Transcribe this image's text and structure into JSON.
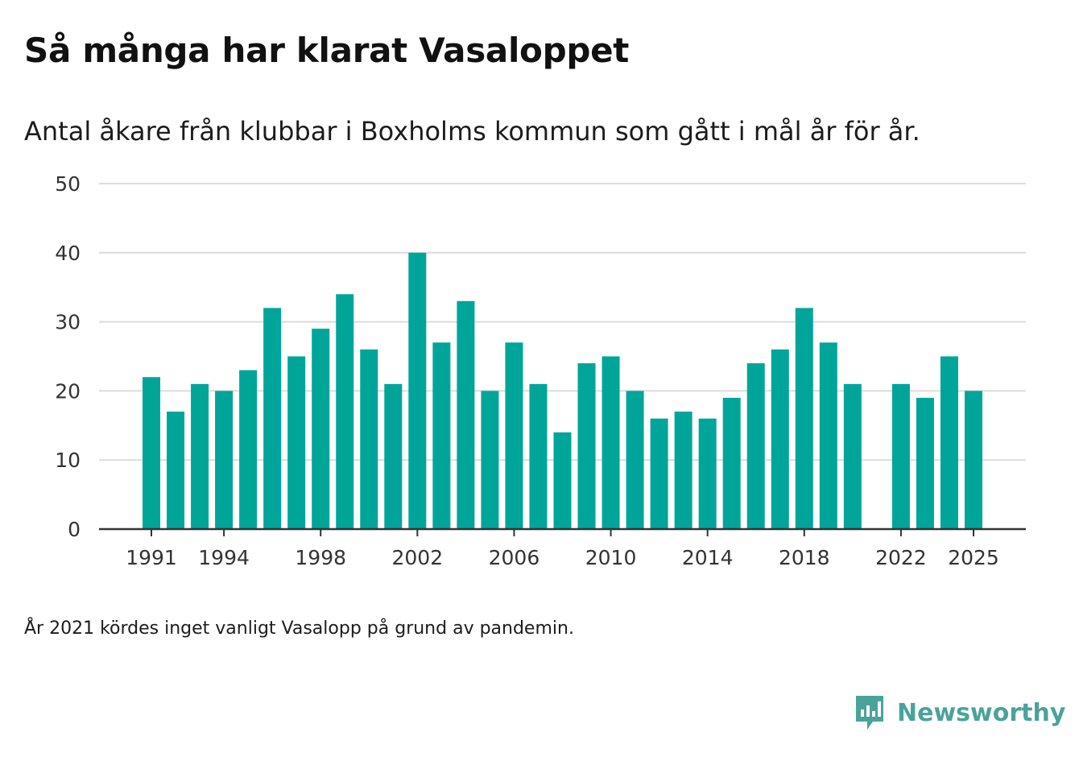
{
  "title": "Så många har klarat Vasaloppet",
  "subtitle": "Antal åkare från klubbar i Boxholms kommun som gått i mål år för år.",
  "footnote": "År 2021 kördes inget vanligt Vasalopp på grund av pandemin.",
  "brand": {
    "name": "Newsworthy",
    "logo_icon": "newsworthy-chart-bubble-icon",
    "color": "#4aa39b"
  },
  "colors": {
    "bar": "#00a59a",
    "grid": "#dcdcdc",
    "axis": "#333333",
    "tick_text": "#333333"
  },
  "chart_data": {
    "type": "bar",
    "title": "Så många har klarat Vasaloppet",
    "xlabel": "",
    "ylabel": "",
    "ylim": [
      0,
      50
    ],
    "yticks": [
      0,
      10,
      20,
      30,
      40,
      50
    ],
    "grid": true,
    "x_tick_labels": [
      "1991",
      "1994",
      "1998",
      "2002",
      "2006",
      "2010",
      "2014",
      "2018",
      "2022",
      "2025"
    ],
    "categories": [
      1991,
      1992,
      1993,
      1994,
      1995,
      1996,
      1997,
      1998,
      1999,
      2000,
      2001,
      2002,
      2003,
      2004,
      2005,
      2006,
      2007,
      2008,
      2009,
      2010,
      2011,
      2012,
      2013,
      2014,
      2015,
      2016,
      2017,
      2018,
      2019,
      2020,
      2021,
      2022,
      2023,
      2024,
      2025
    ],
    "values": [
      22,
      17,
      21,
      20,
      23,
      32,
      25,
      29,
      34,
      26,
      21,
      40,
      27,
      33,
      20,
      27,
      21,
      14,
      24,
      25,
      20,
      16,
      17,
      16,
      19,
      24,
      26,
      32,
      27,
      21,
      null,
      21,
      19,
      25,
      20
    ]
  }
}
